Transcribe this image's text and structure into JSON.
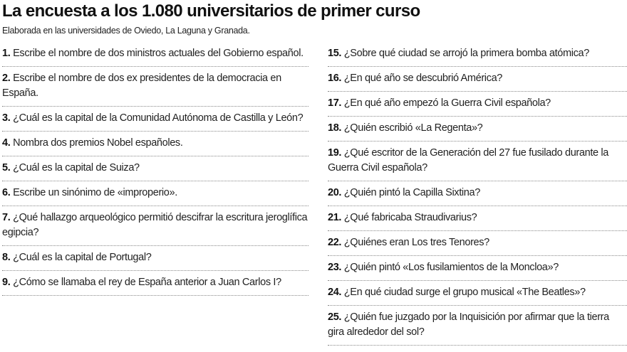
{
  "header": {
    "title": "La encuesta a los 1.080 universitarios de primer curso",
    "subtitle": "Elaborada en las universidades de Oviedo, La Laguna y Granada."
  },
  "columns": [
    {
      "questions": [
        {
          "number": "1.",
          "text": "Escribe el nombre de dos ministros actuales del Gobierno español."
        },
        {
          "number": "2.",
          "text": "Escribe el nombre de dos ex presidentes de la democracia en España."
        },
        {
          "number": "3.",
          "text": "¿Cuál es la capital de la Comunidad Autónoma de Castilla y León?"
        },
        {
          "number": "4.",
          "text": "Nombra dos premios Nobel españoles."
        },
        {
          "number": "5.",
          "text": "¿Cuál es la capital de Suiza?"
        },
        {
          "number": "6.",
          "text": "Escribe un sinónimo de «improperio»."
        },
        {
          "number": "7.",
          "text": "¿Qué hallazgo arqueológico permitió descifrar la escritura jeroglífica egipcia?"
        },
        {
          "number": "8.",
          "text": "¿Cuál es la capital de Portugal?"
        },
        {
          "number": "9.",
          "text": "¿Cómo se llamaba el rey de España anterior a Juan Carlos I?"
        }
      ]
    },
    {
      "questions": [
        {
          "number": "15.",
          "text": "¿Sobre qué ciudad se arrojó la primera bomba atómica?"
        },
        {
          "number": "16.",
          "text": "¿En qué año se descubrió América?"
        },
        {
          "number": "17.",
          "text": "¿En qué año empezó la Guerra Civil española?"
        },
        {
          "number": "18.",
          "text": "¿Quién escribió «La Regenta»?"
        },
        {
          "number": "19.",
          "text": "¿Qué escritor de la Generación del 27 fue fusilado durante la Guerra Civil española?"
        },
        {
          "number": "20.",
          "text": "¿Quién pintó la Capilla Sixtina?"
        },
        {
          "number": "21.",
          "text": "¿Qué fabricaba Straudivarius?"
        },
        {
          "number": "22.",
          "text": "¿Quiénes eran Los tres Tenores?"
        },
        {
          "number": "23.",
          "text": "¿Quién pintó «Los fusilamientos de la Moncloa»?"
        },
        {
          "number": "24.",
          "text": "¿En qué ciudad surge el grupo musical «The Beatles»?"
        },
        {
          "number": "25.",
          "text": "¿Quién fue juzgado por la Inquisición por afirmar que la tierra gira alrededor del sol?"
        }
      ]
    }
  ]
}
